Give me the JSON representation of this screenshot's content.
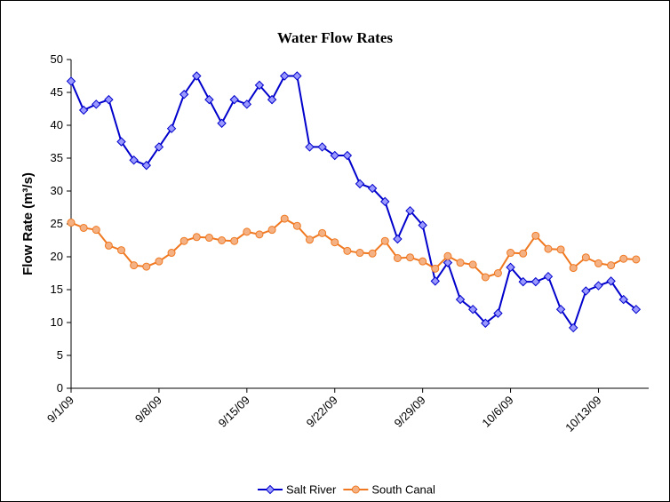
{
  "chart_data": {
    "type": "line",
    "title": "Water Flow Rates",
    "ylabel": "Flow Rate (m³/s)",
    "x": [
      "2009-09-01",
      "2009-09-02",
      "2009-09-03",
      "2009-09-04",
      "2009-09-05",
      "2009-09-06",
      "2009-09-07",
      "2009-09-08",
      "2009-09-09",
      "2009-09-10",
      "2009-09-11",
      "2009-09-12",
      "2009-09-13",
      "2009-09-14",
      "2009-09-15",
      "2009-09-16",
      "2009-09-17",
      "2009-09-18",
      "2009-09-19",
      "2009-09-20",
      "2009-09-21",
      "2009-09-22",
      "2009-09-23",
      "2009-09-24",
      "2009-09-25",
      "2009-09-26",
      "2009-09-27",
      "2009-09-28",
      "2009-09-29",
      "2009-09-30",
      "2009-10-01",
      "2009-10-02",
      "2009-10-03",
      "2009-10-04",
      "2009-10-05",
      "2009-10-06",
      "2009-10-07",
      "2009-10-08",
      "2009-10-09",
      "2009-10-10",
      "2009-10-11",
      "2009-10-12",
      "2009-10-13",
      "2009-10-14",
      "2009-10-15",
      "2009-10-16"
    ],
    "series": [
      {
        "name": "Salt River",
        "color": "#0000cc",
        "marker": "diamond",
        "marker_color": "#9999ff",
        "values": [
          46.7,
          42.3,
          43.2,
          43.9,
          37.5,
          34.7,
          33.9,
          36.7,
          39.5,
          44.7,
          47.5,
          43.9,
          40.3,
          43.9,
          43.2,
          46.1,
          43.9,
          47.5,
          47.5,
          36.7,
          36.7,
          35.4,
          35.4,
          31.1,
          30.4,
          28.4,
          22.7,
          27.0,
          24.8,
          16.3,
          19.1,
          13.5,
          12.0,
          9.9,
          11.4,
          18.4,
          16.2,
          16.2,
          17.0,
          12.0,
          9.2,
          14.8,
          15.6,
          16.3,
          13.5,
          12.0
        ]
      },
      {
        "name": "South Canal",
        "color": "#f07820",
        "marker": "circle",
        "marker_color": "#f4b183",
        "values": [
          25.2,
          24.4,
          24.1,
          21.7,
          21.0,
          18.7,
          18.5,
          19.3,
          20.6,
          22.4,
          23.0,
          22.9,
          22.5,
          22.4,
          23.8,
          23.4,
          24.1,
          25.8,
          24.7,
          22.6,
          23.6,
          22.2,
          20.9,
          20.6,
          20.5,
          22.4,
          19.8,
          19.9,
          19.3,
          18.2,
          20.1,
          19.1,
          18.8,
          16.9,
          17.5,
          20.6,
          20.5,
          23.2,
          21.2,
          21.1,
          18.3,
          19.9,
          19.0,
          18.7,
          19.7,
          19.6
        ]
      }
    ],
    "xlim": [
      "2009-09-01",
      "2009-10-17"
    ],
    "xticks": [
      {
        "value": "2009-09-01",
        "label": "9/1/09"
      },
      {
        "value": "2009-09-08",
        "label": "9/8/09"
      },
      {
        "value": "2009-09-15",
        "label": "9/15/09"
      },
      {
        "value": "2009-09-22",
        "label": "9/22/09"
      },
      {
        "value": "2009-09-29",
        "label": "9/29/09"
      },
      {
        "value": "2009-10-06",
        "label": "10/6/09"
      },
      {
        "value": "2009-10-13",
        "label": "10/13/09"
      }
    ],
    "ylim": [
      0,
      50
    ],
    "yticks": [
      0,
      5,
      10,
      15,
      20,
      25,
      30,
      35,
      40,
      45,
      50
    ],
    "grid": false,
    "legend": "bottom"
  }
}
